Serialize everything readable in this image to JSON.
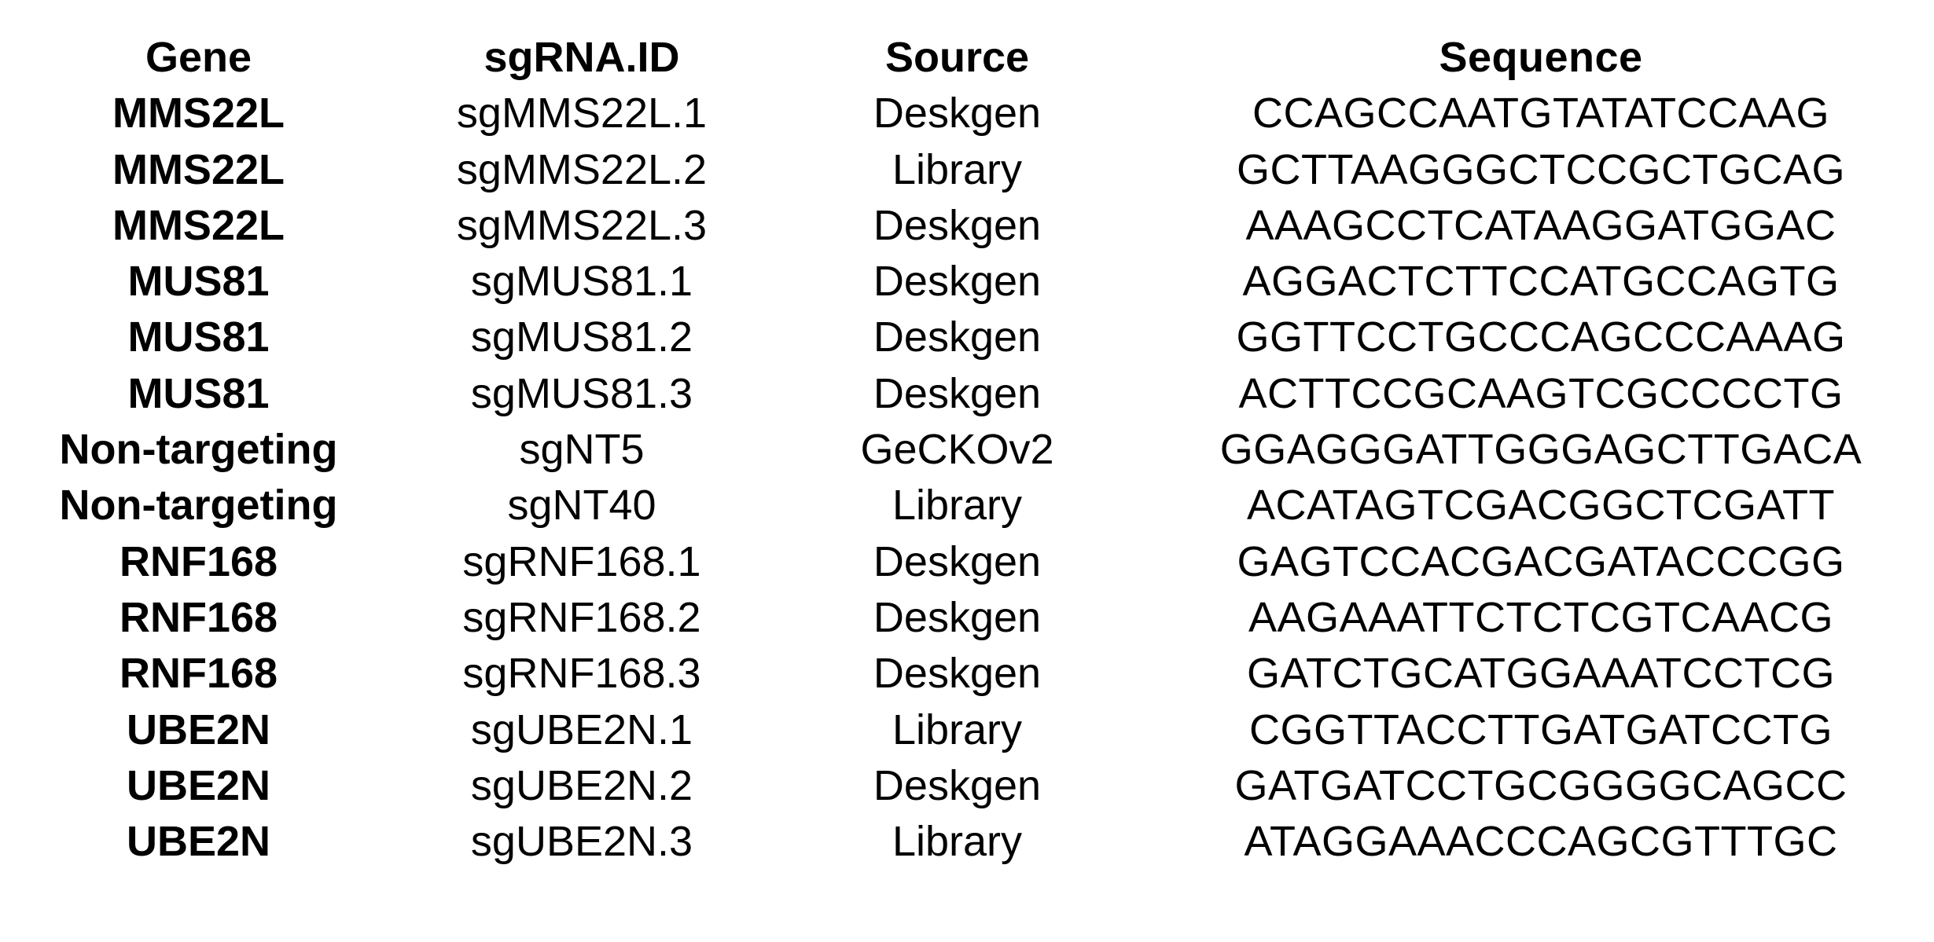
{
  "table": {
    "headers": {
      "gene": "Gene",
      "sgrna_id": "sgRNA.ID",
      "source": "Source",
      "sequence": "Sequence"
    },
    "rows": [
      {
        "gene": "MMS22L",
        "sgrna_id": "sgMMS22L.1",
        "source": "Deskgen",
        "sequence": "CCAGCCAATGTATATCCAAG"
      },
      {
        "gene": "MMS22L",
        "sgrna_id": "sgMMS22L.2",
        "source": "Library",
        "sequence": "GCTTAAGGGCTCCGCTGCAG"
      },
      {
        "gene": "MMS22L",
        "sgrna_id": "sgMMS22L.3",
        "source": "Deskgen",
        "sequence": "AAAGCCTCATAAGGATGGAC"
      },
      {
        "gene": "MUS81",
        "sgrna_id": "sgMUS81.1",
        "source": "Deskgen",
        "sequence": "AGGACTCTTCCATGCCAGTG"
      },
      {
        "gene": "MUS81",
        "sgrna_id": "sgMUS81.2",
        "source": "Deskgen",
        "sequence": "GGTTCCTGCCCAGCCCAAAG"
      },
      {
        "gene": "MUS81",
        "sgrna_id": "sgMUS81.3",
        "source": "Deskgen",
        "sequence": "ACTTCCGCAAGTCGCCCCTG"
      },
      {
        "gene": "Non-targeting",
        "sgrna_id": "sgNT5",
        "source": "GeCKOv2",
        "sequence": "GGAGGGATTGGGAGCTTGACA"
      },
      {
        "gene": "Non-targeting",
        "sgrna_id": "sgNT40",
        "source": "Library",
        "sequence": "ACATAGTCGACGGCTCGATT"
      },
      {
        "gene": "RNF168",
        "sgrna_id": "sgRNF168.1",
        "source": "Deskgen",
        "sequence": "GAGTCCACGACGATACCCGG"
      },
      {
        "gene": "RNF168",
        "sgrna_id": "sgRNF168.2",
        "source": "Deskgen",
        "sequence": "AAGAAATTCTCTCGTCAACG"
      },
      {
        "gene": "RNF168",
        "sgrna_id": "sgRNF168.3",
        "source": "Deskgen",
        "sequence": "GATCTGCATGGAAATCCTCG"
      },
      {
        "gene": "UBE2N",
        "sgrna_id": "sgUBE2N.1",
        "source": "Library",
        "sequence": "CGGTTACCTTGATGATCCTG"
      },
      {
        "gene": "UBE2N",
        "sgrna_id": "sgUBE2N.2",
        "source": "Deskgen",
        "sequence": "GATGATCCTGCGGGGCAGCC"
      },
      {
        "gene": "UBE2N",
        "sgrna_id": "sgUBE2N.3",
        "source": "Library",
        "sequence": "ATAGGAAACCCAGCGTTTGC"
      }
    ]
  }
}
